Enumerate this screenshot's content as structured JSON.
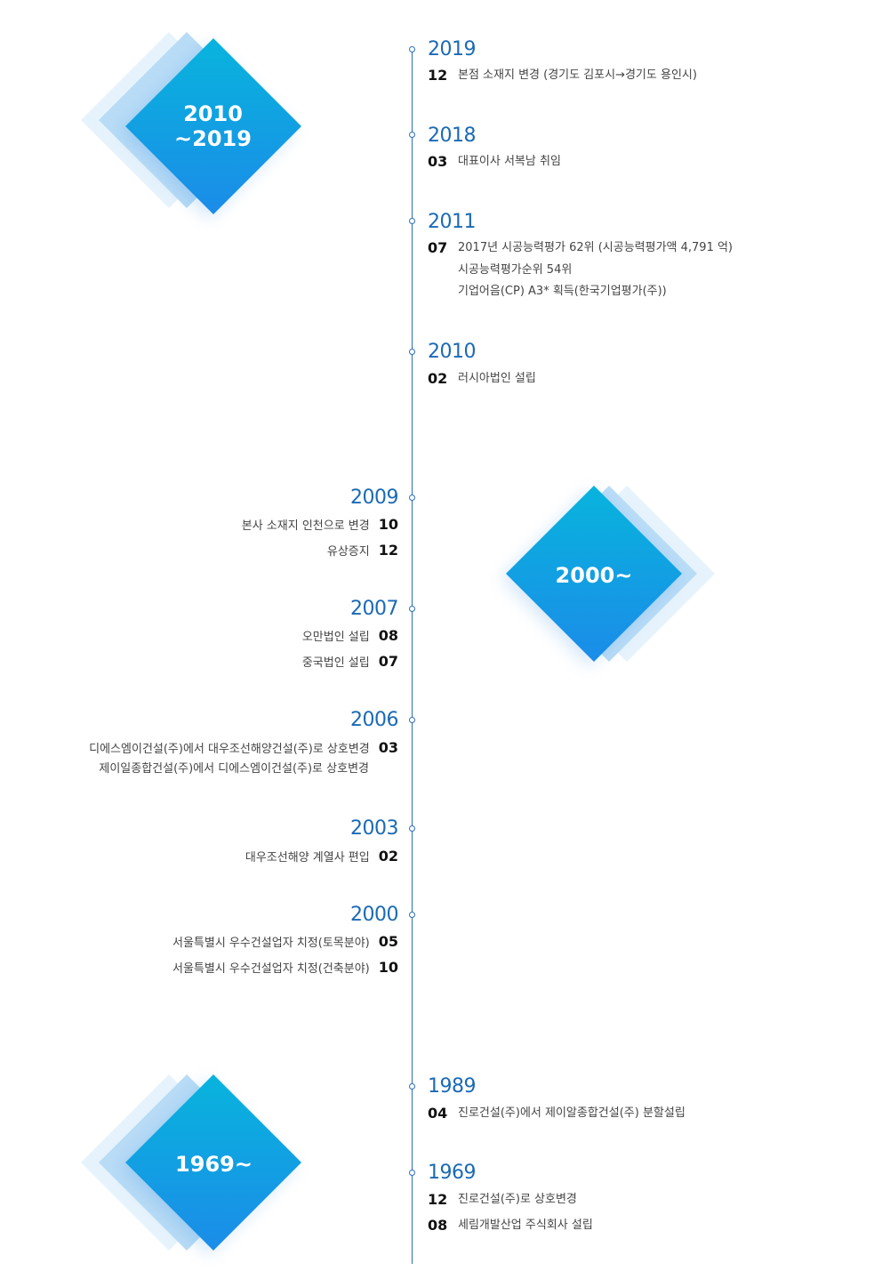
{
  "periods": [
    {
      "label_line1": "2010",
      "label_line2": "~2019"
    },
    {
      "label": "2000~"
    },
    {
      "label": "1969~"
    }
  ],
  "entries": {
    "y2019": {
      "year": "2019",
      "items": [
        {
          "month": "12",
          "text": "본점 소재지 변경 (경기도 김포시→경기도 용인시)"
        }
      ]
    },
    "y2018": {
      "year": "2018",
      "items": [
        {
          "month": "03",
          "text": "대표이사 서복남 취임"
        }
      ]
    },
    "y2011": {
      "year": "2011",
      "items": [
        {
          "month": "07",
          "lines": [
            "2017년 시공능력평가 62위 (시공능력평가액 4,791 억)",
            "시공능력평가순위 54위",
            "기업어음(CP) A3* 획득(한국기업평가(주))"
          ]
        }
      ]
    },
    "y2010": {
      "year": "2010",
      "items": [
        {
          "month": "02",
          "text": "러시아법인 설립"
        }
      ]
    },
    "y2009": {
      "year": "2009",
      "items": [
        {
          "month": "10",
          "text": "본사 소재지 인천으로 변경"
        },
        {
          "month": "12",
          "text": "유상증지"
        }
      ]
    },
    "y2007": {
      "year": "2007",
      "items": [
        {
          "month": "08",
          "text": "오만법인 설립"
        },
        {
          "month": "07",
          "text": "중국법인 설립"
        }
      ]
    },
    "y2006": {
      "year": "2006",
      "items": [
        {
          "month": "03",
          "lines": [
            "디에스엠이건설(주)에서 대우조선해양건설(주)로 상호변경",
            "제이일종합건설(주)에서 디에스엠이건설(주)로 상호변경"
          ]
        }
      ]
    },
    "y2003": {
      "year": "2003",
      "items": [
        {
          "month": "02",
          "text": "대우조선해양 계열사 편입"
        }
      ]
    },
    "y2000": {
      "year": "2000",
      "items": [
        {
          "month": "05",
          "text": "서울특별시 우수건설업자 치정(토목분야)"
        },
        {
          "month": "10",
          "text": "서울특별시 우수건설업자 치정(건축분야)"
        }
      ]
    },
    "y1989": {
      "year": "1989",
      "items": [
        {
          "month": "04",
          "text": "진로건설(주)에서 제이알종합건설(주) 분할설립"
        }
      ]
    },
    "y1969": {
      "year": "1969",
      "items": [
        {
          "month": "12",
          "text": "진로건설(주)로 상호변경"
        },
        {
          "month": "08",
          "text": "세림개발산업 주식회사 설립"
        }
      ]
    }
  }
}
